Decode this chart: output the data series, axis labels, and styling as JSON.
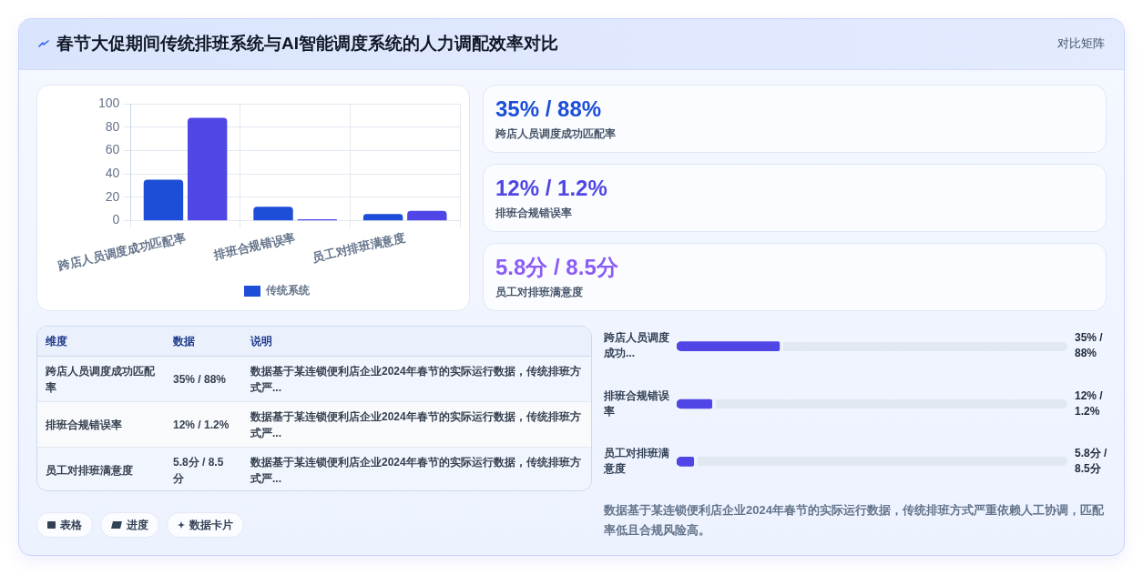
{
  "chart_data": [
    {
      "type": "bar",
      "title": "春节大促期间传统排班系统与AI智能调度系统的人力调配效率对比",
      "categories": [
        "跨店人员调度成功匹配率",
        "排班合规错误率",
        "员工对排班满意度"
      ],
      "series": [
        {
          "name": "传统系统",
          "color": "#1d4ed8",
          "values": [
            35,
            12,
            5.8
          ]
        },
        {
          "color": "#4f46e5",
          "values": [
            88,
            1.2,
            8.5
          ]
        }
      ],
      "ylim": [
        0,
        100
      ],
      "yticks": [
        0,
        20,
        40,
        60,
        80,
        100
      ],
      "grid": true,
      "legend": "bottom"
    },
    {
      "type": "other",
      "subtitle": "对比矩阵",
      "categories": [
        "跨店人员调度成功匹配率",
        "排班合规错误率",
        "员工对排班满意度"
      ],
      "value_labels": [
        "35% / 88%",
        "12% / 1.2%",
        "5.8分 / 8.5分"
      ]
    },
    {
      "type": "other",
      "ylabel": "维度",
      "categories": [
        "数据",
        "说明"
      ],
      "y_categories": [
        "跨店人员调度成功匹配率",
        "排班合规错误率",
        "员工对排班满意度"
      ],
      "cell_labels": [
        [
          "35% / 88%",
          "数据基于某连锁便利店企业2024年春节的实际运行数据，传统排班方式严..."
        ],
        [
          "12% / 1.2%",
          "数据基于某连锁便利店企业2024年春节的实际运行数据，传统排班方式严..."
        ],
        [
          "5.8分 / 8.5分",
          "数据基于某连锁便利店企业2024年春节的实际运行数据，传统排班方式严..."
        ]
      ],
      "annotations": [
        "表格",
        "进度",
        "数据卡片"
      ]
    },
    {
      "type": "bar",
      "orientation": "horizontal",
      "categories": [
        "跨店人员调度成功...",
        "排班合规错误率",
        "员工对排班满意度"
      ],
      "values": [
        35,
        12,
        5.8
      ],
      "color": "#4f46e5",
      "xlim": [
        0,
        133
      ],
      "tick_labels": "y",
      "value_labels": [
        "35% / 88%",
        "12% / 1.2%",
        "5.8分 / 8.5分"
      ],
      "annotations": [
        "数据基于某连锁便利店企业2024年春节的实际运行数据，传统排班方式严重依赖人工协调，匹配率低且合规风险高。"
      ]
    }
  ]
}
